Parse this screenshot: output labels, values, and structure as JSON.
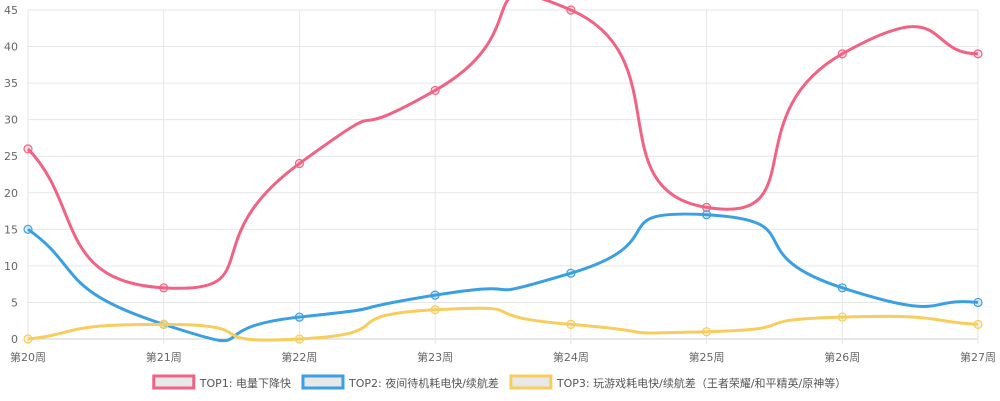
{
  "chart_data": {
    "type": "line",
    "title": "",
    "xlabel": "",
    "ylabel": "",
    "categories": [
      "第20周",
      "第21周",
      "第22周",
      "第23周",
      "第24周",
      "第25周",
      "第26周",
      "第27周"
    ],
    "ylim": [
      0,
      45
    ],
    "yticks": [
      0,
      5,
      10,
      15,
      20,
      25,
      30,
      35,
      40,
      45
    ],
    "grid": true,
    "legend_position": "bottom-center",
    "series": [
      {
        "name": "TOP1: 电量下降快",
        "color": "#f06384",
        "values": [
          26,
          7,
          24,
          34,
          45,
          18,
          39,
          39
        ]
      },
      {
        "name": "TOP2: 夜间待机耗电快/续航差",
        "color": "#3aa0e3",
        "values": [
          15,
          2,
          3,
          6,
          9,
          17,
          7,
          5
        ]
      },
      {
        "name": "TOP3: 玩游戏耗电快/续航差（王者荣耀/和平精英/原神等）",
        "color": "#f7cd5d",
        "values": [
          0,
          2,
          0,
          4,
          2,
          1,
          3,
          2
        ]
      }
    ]
  }
}
